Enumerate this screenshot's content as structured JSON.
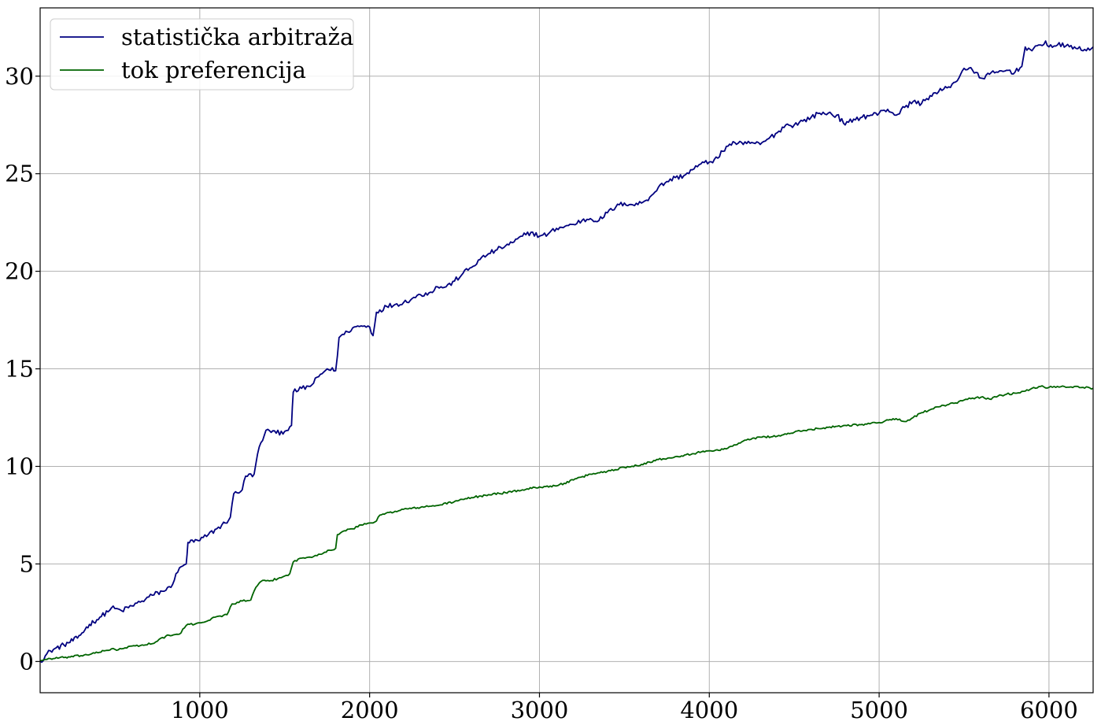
{
  "chart_data": {
    "type": "line",
    "title": "",
    "xlabel": "",
    "ylabel": "",
    "xlim": [
      60,
      6260
    ],
    "ylim": [
      -1.6,
      33.5
    ],
    "grid": true,
    "legend_placement": "upper-left",
    "x_ticks": [
      1000,
      2000,
      3000,
      4000,
      5000,
      6000
    ],
    "y_ticks": [
      0,
      5,
      10,
      15,
      20,
      25,
      30
    ],
    "series": [
      {
        "name": "statistička arbitraža",
        "color": "#000080",
        "points": [
          [
            60,
            0.0
          ],
          [
            120,
            0.55
          ],
          [
            200,
            0.85
          ],
          [
            280,
            1.2
          ],
          [
            350,
            1.9
          ],
          [
            420,
            2.3
          ],
          [
            480,
            2.75
          ],
          [
            540,
            2.6
          ],
          [
            600,
            2.85
          ],
          [
            660,
            3.1
          ],
          [
            720,
            3.4
          ],
          [
            780,
            3.6
          ],
          [
            830,
            3.8
          ],
          [
            860,
            4.5
          ],
          [
            900,
            4.9
          ],
          [
            920,
            5.0
          ],
          [
            930,
            6.1
          ],
          [
            1000,
            6.2
          ],
          [
            1050,
            6.5
          ],
          [
            1100,
            6.8
          ],
          [
            1150,
            7.1
          ],
          [
            1180,
            7.4
          ],
          [
            1200,
            8.6
          ],
          [
            1250,
            8.8
          ],
          [
            1270,
            9.5
          ],
          [
            1320,
            9.6
          ],
          [
            1350,
            11.0
          ],
          [
            1380,
            11.6
          ],
          [
            1400,
            11.9
          ],
          [
            1450,
            11.7
          ],
          [
            1500,
            11.8
          ],
          [
            1540,
            12.1
          ],
          [
            1550,
            13.8
          ],
          [
            1600,
            14.0
          ],
          [
            1650,
            14.1
          ],
          [
            1700,
            14.6
          ],
          [
            1750,
            15.0
          ],
          [
            1800,
            14.9
          ],
          [
            1820,
            16.6
          ],
          [
            1870,
            16.9
          ],
          [
            1900,
            17.1
          ],
          [
            1950,
            17.2
          ],
          [
            2000,
            17.15
          ],
          [
            2020,
            16.7
          ],
          [
            2040,
            17.9
          ],
          [
            2100,
            18.2
          ],
          [
            2150,
            18.3
          ],
          [
            2200,
            18.4
          ],
          [
            2250,
            18.6
          ],
          [
            2300,
            18.8
          ],
          [
            2350,
            18.9
          ],
          [
            2400,
            19.2
          ],
          [
            2450,
            19.2
          ],
          [
            2500,
            19.5
          ],
          [
            2550,
            19.9
          ],
          [
            2600,
            20.2
          ],
          [
            2650,
            20.6
          ],
          [
            2700,
            20.9
          ],
          [
            2750,
            21.1
          ],
          [
            2800,
            21.3
          ],
          [
            2850,
            21.5
          ],
          [
            2900,
            21.8
          ],
          [
            2950,
            22.0
          ],
          [
            3000,
            21.8
          ],
          [
            3050,
            21.9
          ],
          [
            3100,
            22.2
          ],
          [
            3150,
            22.3
          ],
          [
            3200,
            22.4
          ],
          [
            3250,
            22.6
          ],
          [
            3300,
            22.7
          ],
          [
            3350,
            22.6
          ],
          [
            3400,
            23.0
          ],
          [
            3450,
            23.3
          ],
          [
            3500,
            23.5
          ],
          [
            3550,
            23.4
          ],
          [
            3600,
            23.5
          ],
          [
            3650,
            23.8
          ],
          [
            3700,
            24.3
          ],
          [
            3750,
            24.6
          ],
          [
            3800,
            24.8
          ],
          [
            3850,
            24.9
          ],
          [
            3900,
            25.2
          ],
          [
            3950,
            25.5
          ],
          [
            4000,
            25.6
          ],
          [
            4050,
            25.8
          ],
          [
            4100,
            26.4
          ],
          [
            4150,
            26.6
          ],
          [
            4200,
            26.5
          ],
          [
            4250,
            26.6
          ],
          [
            4300,
            26.5
          ],
          [
            4350,
            26.8
          ],
          [
            4400,
            27.1
          ],
          [
            4450,
            27.5
          ],
          [
            4500,
            27.5
          ],
          [
            4550,
            27.7
          ],
          [
            4600,
            27.9
          ],
          [
            4650,
            28.1
          ],
          [
            4700,
            28.1
          ],
          [
            4750,
            28.0
          ],
          [
            4800,
            27.5
          ],
          [
            4850,
            27.8
          ],
          [
            4900,
            27.9
          ],
          [
            4950,
            28.0
          ],
          [
            5000,
            28.1
          ],
          [
            5050,
            28.3
          ],
          [
            5100,
            28.0
          ],
          [
            5150,
            28.4
          ],
          [
            5200,
            28.7
          ],
          [
            5250,
            28.6
          ],
          [
            5300,
            29.0
          ],
          [
            5350,
            29.2
          ],
          [
            5400,
            29.4
          ],
          [
            5450,
            29.7
          ],
          [
            5500,
            30.4
          ],
          [
            5550,
            30.3
          ],
          [
            5600,
            29.9
          ],
          [
            5650,
            30.1
          ],
          [
            5700,
            30.2
          ],
          [
            5750,
            30.3
          ],
          [
            5800,
            30.2
          ],
          [
            5840,
            30.5
          ],
          [
            5860,
            31.5
          ],
          [
            5900,
            31.3
          ],
          [
            5950,
            31.6
          ],
          [
            5980,
            31.8
          ],
          [
            6000,
            31.5
          ],
          [
            6050,
            31.6
          ],
          [
            6100,
            31.55
          ],
          [
            6150,
            31.5
          ],
          [
            6200,
            31.3
          ],
          [
            6260,
            31.5
          ]
        ]
      },
      {
        "name": "tok preferencija",
        "color": "#006400",
        "points": [
          [
            60,
            0.05
          ],
          [
            120,
            0.15
          ],
          [
            200,
            0.2
          ],
          [
            300,
            0.3
          ],
          [
            400,
            0.45
          ],
          [
            480,
            0.65
          ],
          [
            520,
            0.6
          ],
          [
            560,
            0.7
          ],
          [
            620,
            0.8
          ],
          [
            680,
            0.85
          ],
          [
            740,
            1.0
          ],
          [
            800,
            1.3
          ],
          [
            880,
            1.4
          ],
          [
            920,
            1.85
          ],
          [
            980,
            1.95
          ],
          [
            1050,
            2.1
          ],
          [
            1100,
            2.3
          ],
          [
            1160,
            2.4
          ],
          [
            1190,
            2.95
          ],
          [
            1250,
            3.1
          ],
          [
            1300,
            3.15
          ],
          [
            1330,
            3.8
          ],
          [
            1360,
            4.1
          ],
          [
            1420,
            4.15
          ],
          [
            1480,
            4.3
          ],
          [
            1530,
            4.5
          ],
          [
            1550,
            5.1
          ],
          [
            1600,
            5.3
          ],
          [
            1650,
            5.35
          ],
          [
            1700,
            5.5
          ],
          [
            1770,
            5.7
          ],
          [
            1800,
            5.8
          ],
          [
            1810,
            6.5
          ],
          [
            1850,
            6.7
          ],
          [
            1900,
            6.8
          ],
          [
            1950,
            7.0
          ],
          [
            2000,
            7.1
          ],
          [
            2040,
            7.2
          ],
          [
            2060,
            7.5
          ],
          [
            2150,
            7.7
          ],
          [
            2200,
            7.8
          ],
          [
            2300,
            7.9
          ],
          [
            2400,
            8.0
          ],
          [
            2500,
            8.2
          ],
          [
            2600,
            8.4
          ],
          [
            2700,
            8.55
          ],
          [
            2800,
            8.65
          ],
          [
            2900,
            8.8
          ],
          [
            3000,
            8.95
          ],
          [
            3100,
            9.0
          ],
          [
            3200,
            9.3
          ],
          [
            3300,
            9.6
          ],
          [
            3400,
            9.75
          ],
          [
            3500,
            9.95
          ],
          [
            3600,
            10.1
          ],
          [
            3700,
            10.35
          ],
          [
            3800,
            10.5
          ],
          [
            3900,
            10.65
          ],
          [
            4000,
            10.8
          ],
          [
            4100,
            10.9
          ],
          [
            4200,
            11.3
          ],
          [
            4300,
            11.5
          ],
          [
            4400,
            11.55
          ],
          [
            4500,
            11.75
          ],
          [
            4600,
            11.9
          ],
          [
            4700,
            12.0
          ],
          [
            4800,
            12.1
          ],
          [
            4900,
            12.15
          ],
          [
            5000,
            12.25
          ],
          [
            5100,
            12.45
          ],
          [
            5150,
            12.3
          ],
          [
            5200,
            12.5
          ],
          [
            5250,
            12.75
          ],
          [
            5300,
            12.9
          ],
          [
            5350,
            13.05
          ],
          [
            5400,
            13.15
          ],
          [
            5450,
            13.25
          ],
          [
            5500,
            13.4
          ],
          [
            5550,
            13.5
          ],
          [
            5600,
            13.55
          ],
          [
            5650,
            13.45
          ],
          [
            5700,
            13.6
          ],
          [
            5750,
            13.7
          ],
          [
            5800,
            13.75
          ],
          [
            5850,
            13.85
          ],
          [
            5900,
            14.0
          ],
          [
            5950,
            14.1
          ],
          [
            6000,
            14.05
          ],
          [
            6050,
            14.1
          ],
          [
            6100,
            14.05
          ],
          [
            6150,
            14.1
          ],
          [
            6200,
            14.05
          ],
          [
            6260,
            14.0
          ]
        ]
      }
    ]
  }
}
